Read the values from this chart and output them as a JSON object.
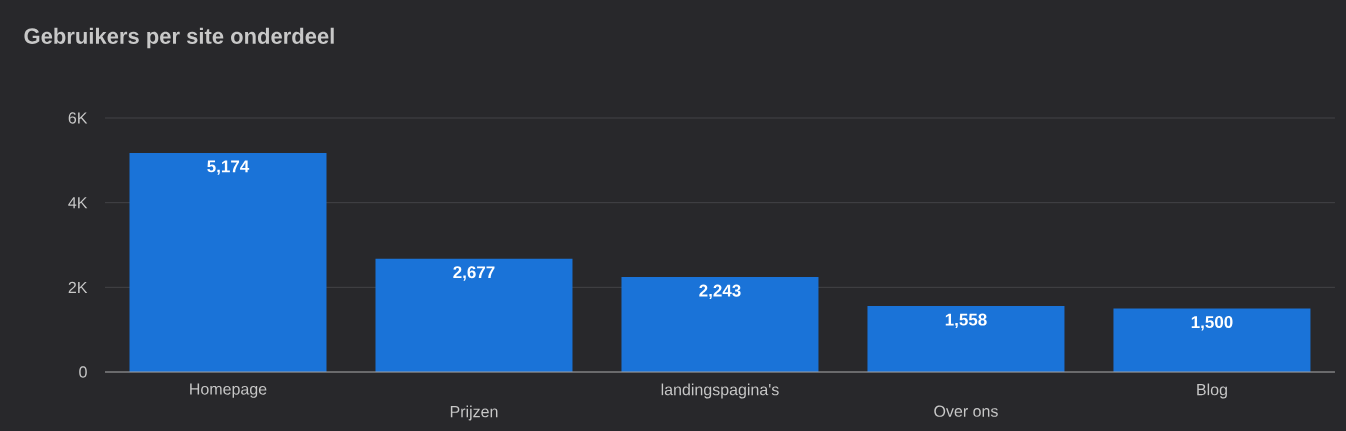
{
  "chart_data": {
    "type": "bar",
    "title": "Gebruikers per site onderdeel",
    "categories": [
      "Homepage",
      "Prijzen",
      "landingspagina's",
      "Over ons",
      "Blog"
    ],
    "values": [
      5174,
      2677,
      2243,
      1558,
      1500
    ],
    "value_labels": [
      "5,174",
      "2,677",
      "2,243",
      "1,558",
      "1,500"
    ],
    "color": "#1a73d8",
    "ylim": [
      0,
      6000
    ],
    "yticks": [
      {
        "value": 0,
        "label": "0"
      },
      {
        "value": 2000,
        "label": "2K"
      },
      {
        "value": 4000,
        "label": "4K"
      },
      {
        "value": 6000,
        "label": "6K"
      }
    ],
    "grid": "y"
  }
}
